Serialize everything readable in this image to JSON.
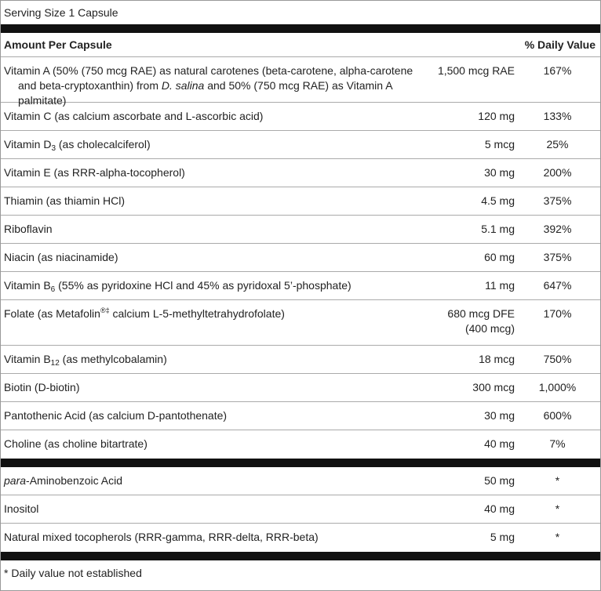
{
  "serving_size": "Serving Size 1 Capsule",
  "header": {
    "amount": "Amount Per Capsule",
    "dv": "% Daily Value"
  },
  "sections": [
    {
      "rows": [
        {
          "name": [
            "Vitamin A (50% (750 mcg RAE) as natural carotenes (beta-carotene, alpha-carotene and beta-cryptoxanthin) from ",
            "D. salina",
            " and 50% (750 mcg RAE) as Vitamin A palmitate)"
          ],
          "amount": [
            "1,500 mcg RAE"
          ],
          "dv": "167%"
        },
        {
          "name": [
            "Vitamin C (as calcium ascorbate and L-ascorbic acid)"
          ],
          "amount": [
            "120 mg"
          ],
          "dv": "133%"
        },
        {
          "name": [
            "Vitamin D",
            "3",
            " (as cholecalciferol)"
          ],
          "amount": [
            "5 mcg"
          ],
          "dv": "25%"
        },
        {
          "name": [
            "Vitamin E (as RRR-alpha-tocopherol)"
          ],
          "amount": [
            "30 mg"
          ],
          "dv": "200%"
        },
        {
          "name": [
            "Thiamin (as thiamin HCl)"
          ],
          "amount": [
            "4.5 mg"
          ],
          "dv": "375%"
        },
        {
          "name": [
            "Riboflavin"
          ],
          "amount": [
            "5.1 mg"
          ],
          "dv": "392%"
        },
        {
          "name": [
            "Niacin (as niacinamide)"
          ],
          "amount": [
            "60 mg"
          ],
          "dv": "375%"
        },
        {
          "name": [
            "Vitamin B",
            "6",
            " (55% as pyridoxine HCl and 45% as pyridoxal 5’-phosphate)"
          ],
          "amount": [
            "11 mg"
          ],
          "dv": "647%"
        },
        {
          "name": [
            "Folate (as Metafolin",
            "®‡",
            " calcium L-5-methyltetrahydrofolate)"
          ],
          "amount": [
            "680 mcg DFE",
            "(400 mcg)"
          ],
          "dv": "170%"
        },
        {
          "name": [
            "Vitamin B",
            "12",
            " (as methylcobalamin)"
          ],
          "amount": [
            "18 mcg"
          ],
          "dv": "750%"
        },
        {
          "name": [
            "Biotin (D-biotin)"
          ],
          "amount": [
            "300 mcg"
          ],
          "dv": "1,000%"
        },
        {
          "name": [
            "Pantothenic Acid (as calcium D-pantothenate)"
          ],
          "amount": [
            "30 mg"
          ],
          "dv": "600%"
        },
        {
          "name": [
            "Choline (as choline bitartrate)"
          ],
          "amount": [
            "40 mg"
          ],
          "dv": "7%"
        }
      ]
    },
    {
      "rows": [
        {
          "name": [
            "para",
            "-Aminobenzoic Acid"
          ],
          "amount": [
            "50 mg"
          ],
          "dv": "*"
        },
        {
          "name": [
            "Inositol"
          ],
          "amount": [
            "40 mg"
          ],
          "dv": "*"
        },
        {
          "name": [
            "Natural mixed tocopherols (RRR-gamma, RRR-delta, RRR-beta)"
          ],
          "amount": [
            "5 mg"
          ],
          "dv": "*"
        }
      ]
    }
  ],
  "footnote": "* Daily value not established"
}
